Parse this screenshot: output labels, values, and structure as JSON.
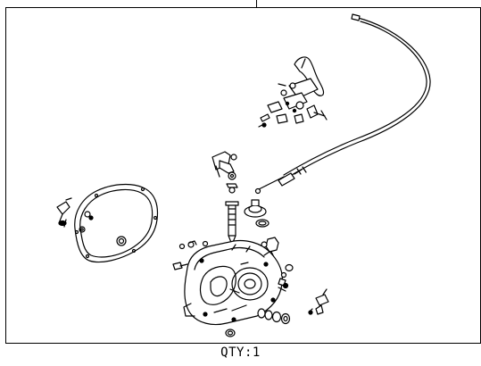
{
  "diagram": {
    "quantity_label": "QTY:1"
  }
}
